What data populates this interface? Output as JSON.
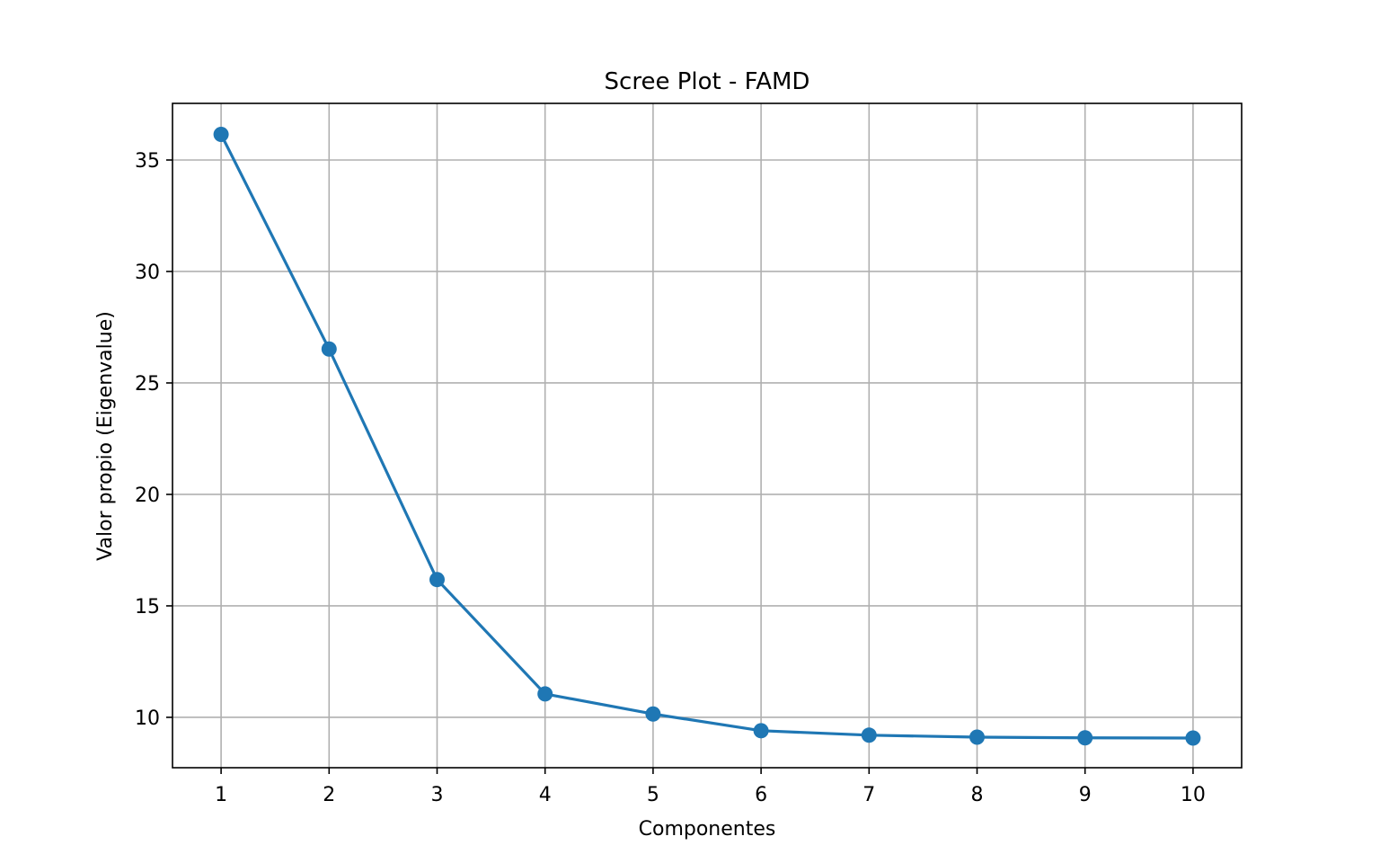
{
  "chart_data": {
    "type": "line",
    "title": "Scree Plot - FAMD",
    "xlabel": "Componentes",
    "ylabel": "Valor propio (Eigenvalue)",
    "x": [
      1,
      2,
      3,
      4,
      5,
      6,
      7,
      8,
      9,
      10
    ],
    "series": [
      {
        "values": [
          36.15,
          26.52,
          16.18,
          11.05,
          10.15,
          9.4,
          9.2,
          9.11,
          9.08,
          9.07
        ],
        "color": "#1f77b4",
        "marker": "circle"
      }
    ],
    "xticks": [
      "1",
      "2",
      "3",
      "4",
      "5",
      "6",
      "7",
      "8",
      "9",
      "10"
    ],
    "yticks": [
      10,
      15,
      20,
      25,
      30,
      35
    ],
    "xlim": [
      0.55,
      10.45
    ],
    "ylim": [
      7.74,
      37.54
    ],
    "grid": true,
    "legend": "none"
  }
}
